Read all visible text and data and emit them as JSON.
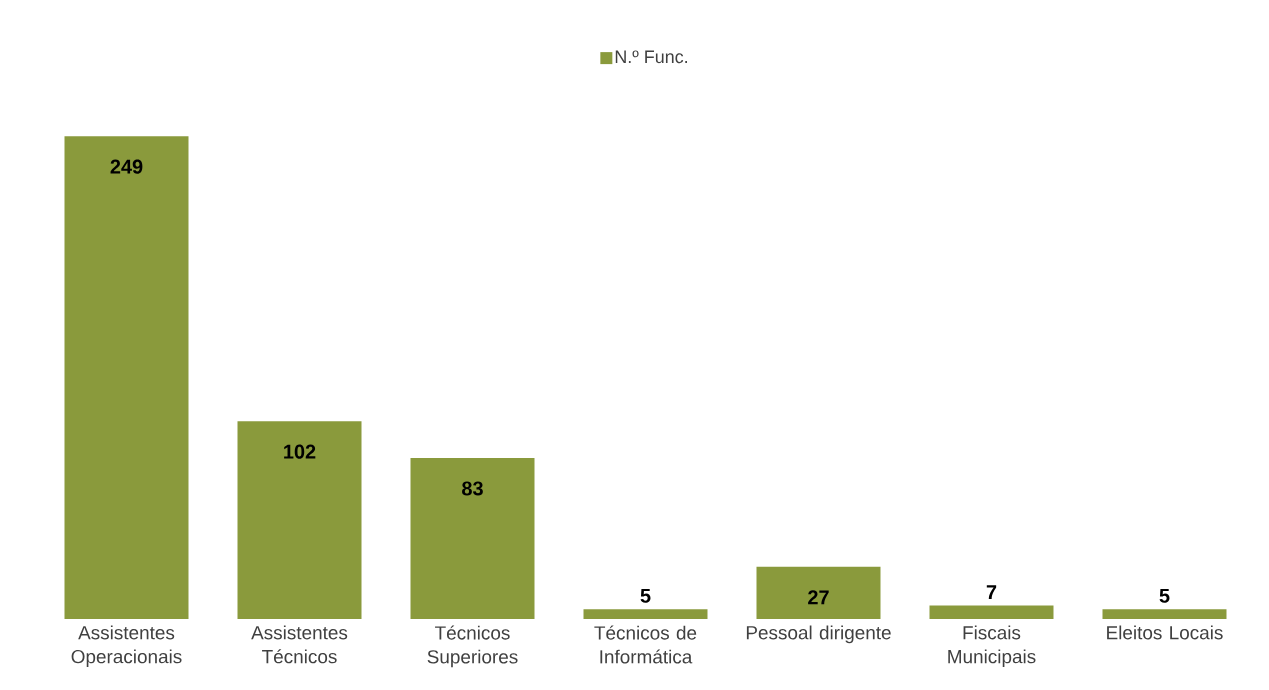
{
  "chart_data": {
    "type": "bar",
    "categories": [
      "Assistentes Operacionais",
      "Assistentes Técnicos",
      "Técnicos Superiores",
      "Técnicos de Informática",
      "Pessoal dirigente",
      "Fiscais Municipais",
      "Eleitos Locais"
    ],
    "series": [
      {
        "name": "N.º Func.",
        "color": "#8a9a3c",
        "values": [
          249,
          102,
          83,
          5,
          27,
          7,
          5
        ]
      }
    ],
    "data_labels": true,
    "legend": "top"
  }
}
